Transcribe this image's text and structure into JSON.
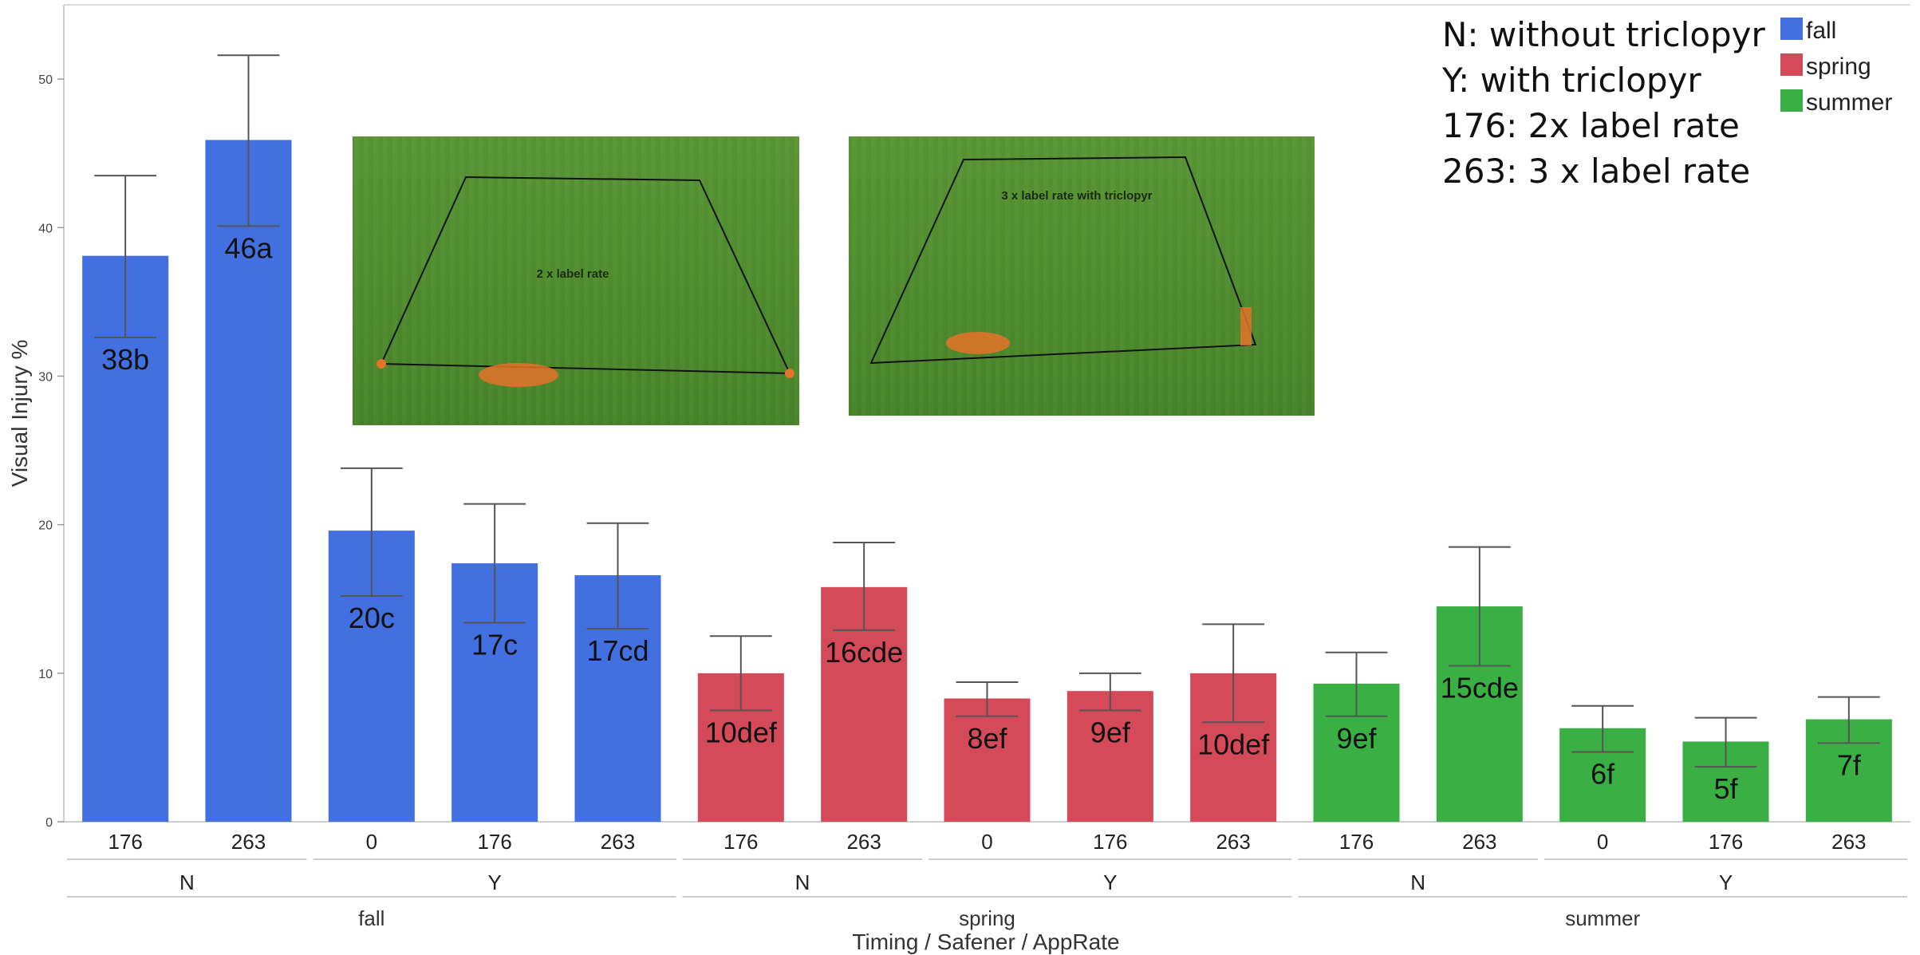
{
  "chart_data": {
    "type": "bar",
    "title": "",
    "ylabel": "Visual Injury %",
    "xlabel": "Timing / Safener / AppRate",
    "ylim": [
      0,
      55
    ],
    "yticks": [
      0,
      10,
      20,
      30,
      40,
      50
    ],
    "grid": false,
    "legend_position": "top-right",
    "colors": {
      "fall": "#4270e0",
      "spring": "#d44a58",
      "summer": "#3ab044"
    },
    "legend": [
      "fall",
      "spring",
      "summer"
    ],
    "notes": [
      "N: without triclopyr",
      "Y: with triclopyr",
      "176: 2x label rate",
      "263: 3 x label rate"
    ],
    "inset_labels": [
      "2 x label rate",
      "3 x label rate with triclopyr"
    ],
    "bars": [
      {
        "timing": "fall",
        "safener": "N",
        "rate": "176",
        "value": 38.1,
        "err_low": 32.6,
        "err_high": 43.5,
        "label": "38b"
      },
      {
        "timing": "fall",
        "safener": "N",
        "rate": "263",
        "value": 45.9,
        "err_low": 40.1,
        "err_high": 51.6,
        "label": "46a"
      },
      {
        "timing": "fall",
        "safener": "Y",
        "rate": "0",
        "value": 19.6,
        "err_low": 15.2,
        "err_high": 23.8,
        "label": "20c"
      },
      {
        "timing": "fall",
        "safener": "Y",
        "rate": "176",
        "value": 17.4,
        "err_low": 13.4,
        "err_high": 21.4,
        "label": "17c"
      },
      {
        "timing": "fall",
        "safener": "Y",
        "rate": "263",
        "value": 16.6,
        "err_low": 13.0,
        "err_high": 20.1,
        "label": "17cd"
      },
      {
        "timing": "spring",
        "safener": "N",
        "rate": "176",
        "value": 10.0,
        "err_low": 7.5,
        "err_high": 12.5,
        "label": "10def"
      },
      {
        "timing": "spring",
        "safener": "N",
        "rate": "263",
        "value": 15.8,
        "err_low": 12.9,
        "err_high": 18.8,
        "label": "16cde"
      },
      {
        "timing": "spring",
        "safener": "Y",
        "rate": "0",
        "value": 8.3,
        "err_low": 7.1,
        "err_high": 9.4,
        "label": "8ef"
      },
      {
        "timing": "spring",
        "safener": "Y",
        "rate": "176",
        "value": 8.8,
        "err_low": 7.5,
        "err_high": 10.0,
        "label": "9ef"
      },
      {
        "timing": "spring",
        "safener": "Y",
        "rate": "263",
        "value": 10.0,
        "err_low": 6.7,
        "err_high": 13.3,
        "label": "10def"
      },
      {
        "timing": "summer",
        "safener": "N",
        "rate": "176",
        "value": 9.3,
        "err_low": 7.1,
        "err_high": 11.4,
        "label": "9ef"
      },
      {
        "timing": "summer",
        "safener": "N",
        "rate": "263",
        "value": 14.5,
        "err_low": 10.5,
        "err_high": 18.5,
        "label": "15cde"
      },
      {
        "timing": "summer",
        "safener": "Y",
        "rate": "0",
        "value": 6.3,
        "err_low": 4.7,
        "err_high": 7.8,
        "label": "6f"
      },
      {
        "timing": "summer",
        "safener": "Y",
        "rate": "176",
        "value": 5.4,
        "err_low": 3.7,
        "err_high": 7.0,
        "label": "5f"
      },
      {
        "timing": "summer",
        "safener": "Y",
        "rate": "263",
        "value": 6.9,
        "err_low": 5.3,
        "err_high": 8.4,
        "label": "7f"
      }
    ]
  }
}
